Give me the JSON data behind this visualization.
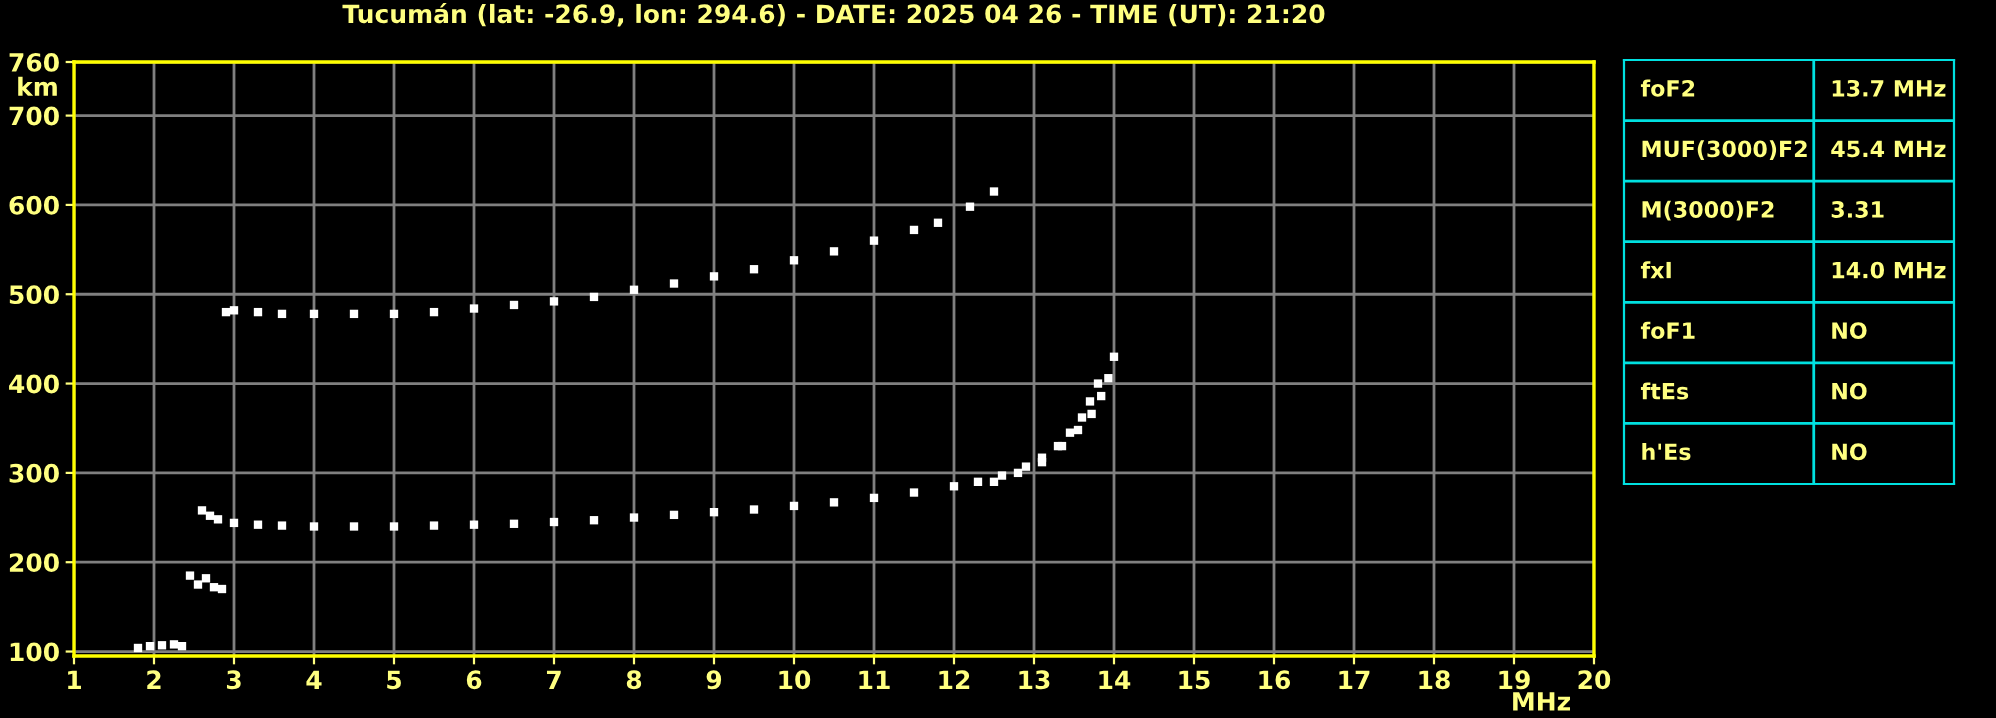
{
  "chart_data": [
    {
      "type": "scatter",
      "title": "Tucumán (lat: -26.9, lon: 294.6) - DATE: 2025 04 26 - TIME (UT): 21:20",
      "xlabel": "MHz",
      "ylabel": "km",
      "xlim": [
        1,
        20
      ],
      "ylim": [
        95,
        760
      ],
      "xticks": [
        1,
        2,
        3,
        4,
        5,
        6,
        7,
        8,
        9,
        10,
        11,
        12,
        13,
        14,
        15,
        16,
        17,
        18,
        19,
        20
      ],
      "yticks": [
        100,
        200,
        300,
        400,
        500,
        600,
        700,
        760
      ],
      "grid": true,
      "marker": "square",
      "series": [
        {
          "color": "#ffffff",
          "x": [
            2.6,
            2.7,
            2.8,
            3.0,
            3.3,
            3.6,
            4.0,
            4.5,
            5.0,
            5.5,
            6.0,
            6.5,
            7.0,
            7.5,
            8.0,
            8.5,
            9.0,
            9.5,
            10.0,
            10.5,
            11.0,
            11.5,
            12.0,
            12.3,
            12.6,
            12.9,
            13.1,
            13.3,
            13.45,
            13.6,
            13.7,
            13.8
          ],
          "values": [
            258,
            252,
            248,
            244,
            242,
            241,
            240,
            240,
            240,
            241,
            242,
            243,
            245,
            247,
            250,
            253,
            256,
            259,
            263,
            267,
            272,
            278,
            285,
            290,
            297,
            307,
            317,
            330,
            345,
            362,
            380,
            400
          ]
        },
        {
          "color": "#ffffff",
          "x": [
            12.5,
            12.8,
            13.1,
            13.35,
            13.55,
            13.72,
            13.84,
            13.93,
            14.0
          ],
          "values": [
            290,
            300,
            312,
            330,
            348,
            366,
            386,
            406,
            430
          ]
        },
        {
          "color": "#ffffff",
          "x": [
            2.9,
            3.0,
            3.3,
            3.6,
            4.0,
            4.5,
            5.0,
            5.5,
            6.0,
            6.5,
            7.0,
            7.5,
            8.0,
            8.5,
            9.0,
            9.5,
            10.0,
            10.5,
            11.0,
            11.5,
            11.8,
            12.2,
            12.5
          ],
          "values": [
            480,
            482,
            480,
            478,
            478,
            478,
            478,
            480,
            484,
            488,
            492,
            497,
            505,
            512,
            520,
            528,
            538,
            548,
            560,
            572,
            580,
            598,
            615
          ]
        },
        {
          "color": "#ffffff",
          "x": [
            2.45,
            2.55,
            2.65,
            2.75,
            2.85,
            1.8,
            1.95,
            2.1,
            2.25,
            2.35
          ],
          "values": [
            185,
            175,
            182,
            172,
            170,
            104,
            106,
            107,
            108,
            106
          ]
        }
      ]
    },
    {
      "type": "other",
      "annotations": [
        "foF2",
        "13.7 MHz",
        "MUF(3000)F2",
        "45.4 MHz",
        "M(3000)F2",
        "3.31",
        "fxI",
        "14.0 MHz",
        "foF1",
        "NO",
        "ftEs",
        "NO",
        "h'Es",
        "NO"
      ]
    }
  ]
}
